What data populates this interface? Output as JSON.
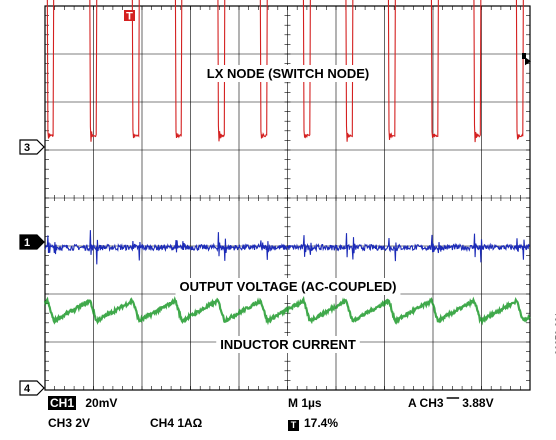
{
  "chart_data": {
    "type": "line",
    "title": "",
    "xlabel": "",
    "ylabel": "",
    "grid": true,
    "x_divisions": 10,
    "y_divisions": 8,
    "time_per_division": "1µs",
    "switch_period_div": 0.88,
    "series": [
      {
        "name": "LX NODE (SWITCH NODE)",
        "channel": "CH3",
        "color": "#d42020",
        "high_level_div": 3.05,
        "low_level_div": 0.0,
        "scale": "2V",
        "edge_times_div": [
          0.05,
          0.93,
          1.81,
          2.69,
          3.57,
          4.45,
          5.33,
          6.21,
          7.09,
          7.97,
          8.85,
          9.73
        ]
      },
      {
        "name": "OUTPUT VOLTAGE (AC-COUPLED)",
        "channel": "CH1",
        "color": "#1c2bb8",
        "offset_div": 0.0,
        "ripple_div": 0.12,
        "spike_div": 0.45,
        "scale": "20mV"
      },
      {
        "name": "INDUCTOR CURRENT",
        "channel": "CH4",
        "color": "#1e9a2c",
        "center_div": 1.25,
        "ripple_pp_div": 0.42,
        "scale": "1AΩ"
      }
    ],
    "annotations": [
      "LX NODE (SWITCH NODE)",
      "OUTPUT VOLTAGE (AC-COUPLED)",
      "INDUCTOR CURRENT"
    ],
    "ground_markers": [
      {
        "label": "3",
        "level_div": 0.0,
        "style": "outline"
      },
      {
        "label": "1",
        "level_div": 0.0,
        "style": "filled"
      },
      {
        "label": "4",
        "level_div": 0.0,
        "style": "outline"
      }
    ],
    "trigger_marker": "T",
    "readout": {
      "ch1_tag": "CH1",
      "ch1": "20mV",
      "ch3": "CH3  2V",
      "ch4": "CH4  1AΩ",
      "timebase": "M  1µs",
      "trigger": "A  CH3  ⎺ 3.88V",
      "position_tag": "T",
      "position": "17.4%"
    },
    "figure_id": "06079-031"
  }
}
